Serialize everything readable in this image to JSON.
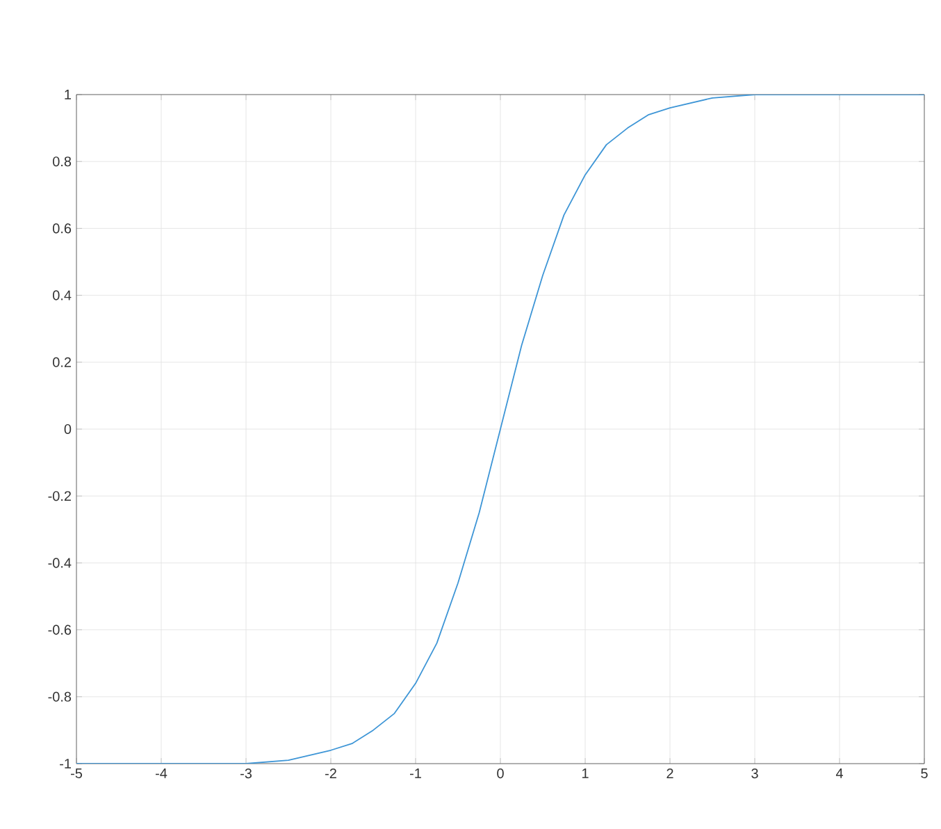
{
  "chart_data": {
    "type": "line",
    "x": [
      -5,
      -4,
      -3,
      -2.5,
      -2,
      -1.75,
      -1.5,
      -1.25,
      -1,
      -0.75,
      -0.5,
      -0.25,
      0,
      0.25,
      0.5,
      0.75,
      1,
      1.25,
      1.5,
      1.75,
      2,
      2.5,
      3,
      4,
      5
    ],
    "series": [
      {
        "color": "#3d95d6",
        "values": [
          -1.0,
          -1.0,
          -1.0,
          -0.99,
          -0.96,
          -0.94,
          -0.9,
          -0.85,
          -0.76,
          -0.64,
          -0.46,
          -0.25,
          0,
          0.25,
          0.46,
          0.64,
          0.76,
          0.85,
          0.9,
          0.94,
          0.96,
          0.99,
          1.0,
          1.0,
          1.0
        ]
      }
    ],
    "xlim": [
      -5,
      5
    ],
    "ylim": [
      -1,
      1
    ],
    "xticks": [
      -5,
      -4,
      -3,
      -2,
      -1,
      0,
      1,
      2,
      3,
      4,
      5
    ],
    "yticks": [
      -1,
      -0.8,
      -0.6,
      -0.4,
      -0.2,
      0,
      0.2,
      0.4,
      0.6,
      0.8,
      1
    ],
    "grid": true,
    "marker": "none",
    "line_style": "solid"
  }
}
